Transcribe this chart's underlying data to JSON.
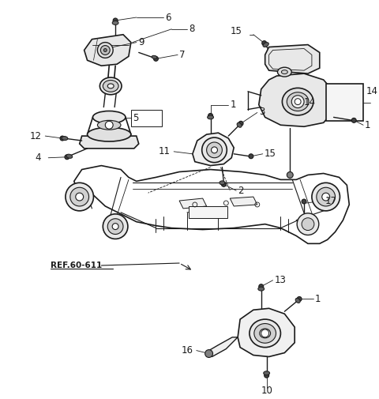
{
  "bg_color": "#ffffff",
  "line_color": "#1a1a1a",
  "fig_w": 4.8,
  "fig_h": 5.05,
  "dpi": 100
}
